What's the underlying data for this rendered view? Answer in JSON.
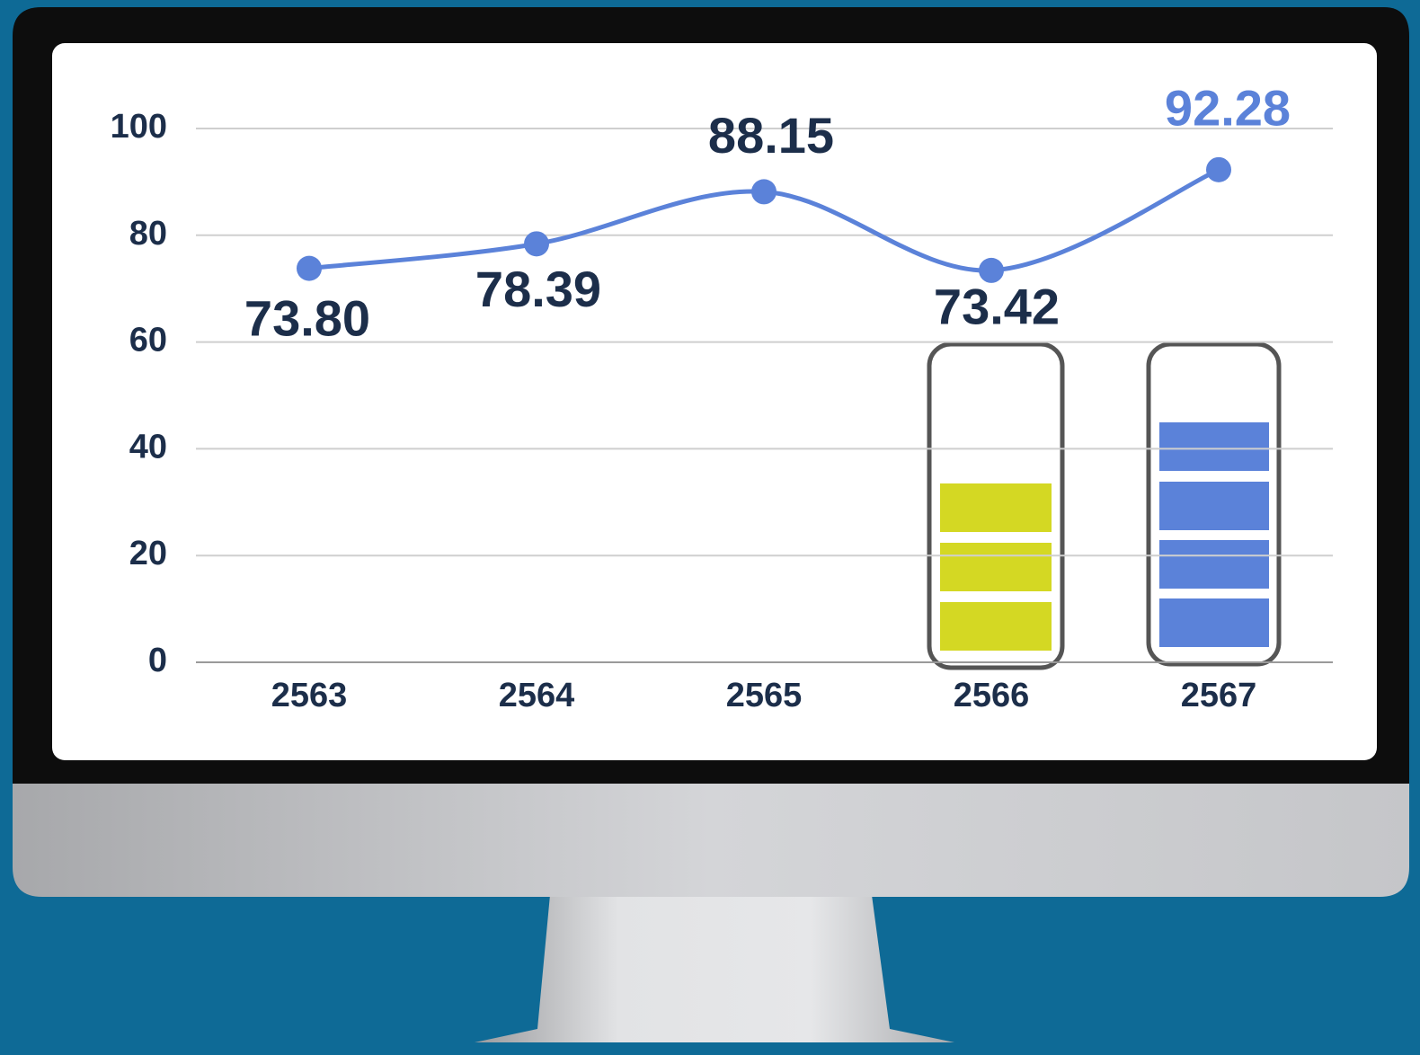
{
  "chart_data": {
    "type": "line",
    "categories": [
      "2563",
      "2564",
      "2565",
      "2566",
      "2567"
    ],
    "series": [
      {
        "color": "#5b82d9",
        "values": [
          73.8,
          78.39,
          88.15,
          73.42,
          92.28
        ],
        "value_labels": [
          "73.80",
          "78.39",
          "88.15",
          "73.42",
          "92.28"
        ],
        "value_label_colors": [
          "#1c2e4a",
          "#1c2e4a",
          "#1c2e4a",
          "#1c2e4a",
          "#5b82d9"
        ]
      }
    ],
    "ylim": [
      0,
      100
    ],
    "yticks": [
      0,
      20,
      40,
      60,
      80,
      100
    ],
    "grid": true
  }
}
